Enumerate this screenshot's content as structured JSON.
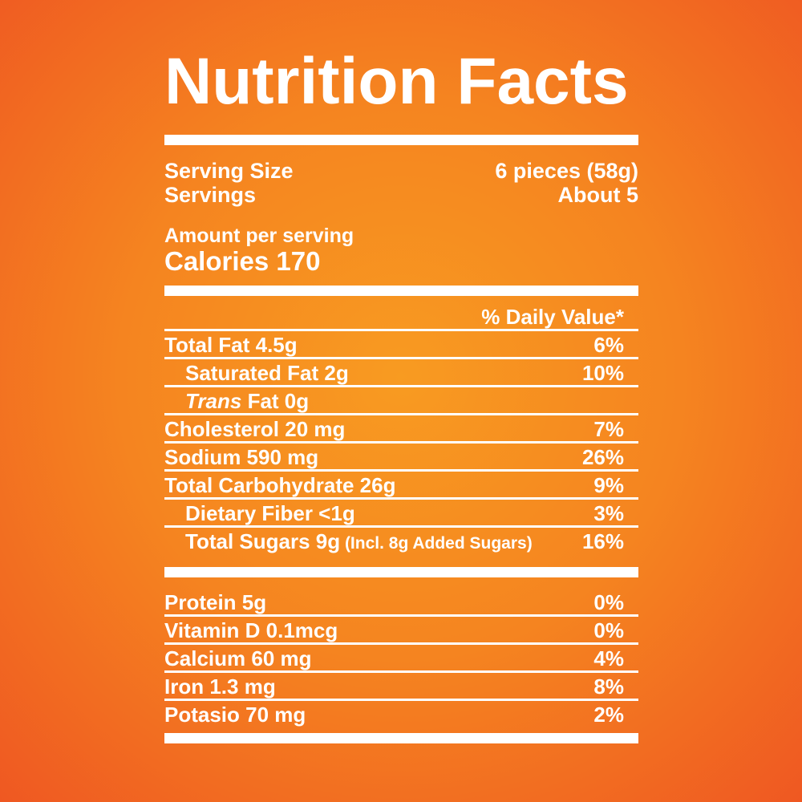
{
  "colors": {
    "background_center": "#f89b21",
    "background_edge": "#ee5222",
    "text_and_rules": "#ffffff"
  },
  "label": {
    "title": "Nutrition Facts",
    "serving_rows": [
      {
        "name": "Serving Size",
        "value": "6 pieces (58g)"
      },
      {
        "name": "Servings",
        "value": "About 5"
      }
    ],
    "amount_per_serving": "Amount per serving",
    "calories": "Calories 170",
    "daily_value_header": "% Daily Value*",
    "nutrient_rows": [
      {
        "name": "Total Fat 4.5g",
        "value": "6%",
        "indent": false
      },
      {
        "name": "Saturated Fat 2g",
        "value": "10%",
        "indent": true
      },
      {
        "name_italic": "Trans",
        "name": " Fat 0g",
        "value": "",
        "indent": true
      },
      {
        "name": "Cholesterol 20 mg",
        "value": "7%",
        "indent": false
      },
      {
        "name": "Sodium 590 mg",
        "value": "26%",
        "indent": false
      },
      {
        "name": "Total Carbohydrate 26g",
        "value": "9%",
        "indent": false
      },
      {
        "name": "Dietary Fiber <1g",
        "value": "3%",
        "indent": true
      },
      {
        "name": "Total Sugars 9g",
        "note": "(Incl. 8g Added Sugars)",
        "value": "16%",
        "indent": true,
        "last": true
      }
    ],
    "footer_rows": [
      {
        "name": "Protein 5g",
        "value": "0%"
      },
      {
        "name": "Vitamin D 0.1mcg",
        "value": "0%"
      },
      {
        "name": "Calcium 60 mg",
        "value": "4%"
      },
      {
        "name": "Iron 1.3 mg",
        "value": "8%"
      },
      {
        "name": "Potasio 70 mg",
        "value": "2%",
        "last": true
      }
    ]
  }
}
